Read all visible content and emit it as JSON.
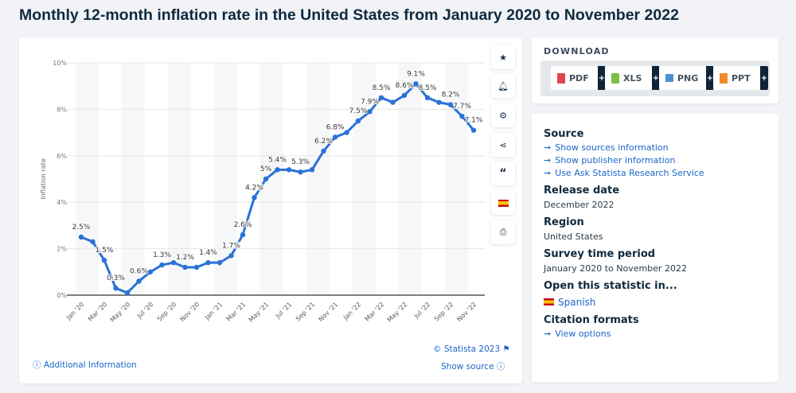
{
  "title": "Monthly 12-month inflation rate in the United States from January 2020 to November 2022",
  "chart_data": {
    "type": "line",
    "title": "",
    "xlabel": "",
    "ylabel": "Inflation rate",
    "ylim": [
      0,
      10
    ],
    "yticks": [
      "0%",
      "2%",
      "4%",
      "6%",
      "8%",
      "10%"
    ],
    "grid": true,
    "color": "#2a72d6",
    "x": [
      "Jan '20",
      "Feb '20",
      "Mar '20",
      "Apr '20",
      "May '20",
      "Jun '20",
      "Jul '20",
      "Aug '20",
      "Sep '20",
      "Oct '20",
      "Nov '20",
      "Dec '20",
      "Jan '21",
      "Feb '21",
      "Mar '21",
      "Apr '21",
      "May '21",
      "Jun '21",
      "Jul '21",
      "Aug '21",
      "Sep '21",
      "Oct '21",
      "Nov '21",
      "Dec '21",
      "Jan '22",
      "Feb '22",
      "Mar '22",
      "Apr '22",
      "May '22",
      "Jun '22",
      "Jul '22",
      "Aug '22",
      "Sep '22",
      "Oct '22",
      "Nov '22"
    ],
    "values": [
      2.5,
      2.3,
      1.5,
      0.3,
      0.1,
      0.6,
      1.0,
      1.3,
      1.4,
      1.2,
      1.2,
      1.4,
      1.4,
      1.7,
      2.6,
      4.2,
      5.0,
      5.4,
      5.4,
      5.3,
      5.4,
      6.2,
      6.8,
      7.0,
      7.5,
      7.9,
      8.5,
      8.3,
      8.6,
      9.1,
      8.5,
      8.3,
      8.2,
      7.7,
      7.1
    ],
    "data_labels": [
      "2.5%",
      null,
      "1.5%",
      "0.3%",
      null,
      "0.6%",
      null,
      "1.3%",
      null,
      "1.2%",
      null,
      "1.4%",
      null,
      "1.7%",
      "2.6%",
      "4.2%",
      "5%",
      "5.4%",
      null,
      "5.3%",
      null,
      "6.2%",
      "6.8%",
      null,
      "7.5%",
      "7.9%",
      "8.5%",
      null,
      "8.6%",
      "9.1%",
      "8.5%",
      null,
      "8.2%",
      "7.7%",
      "7.1%"
    ]
  },
  "chart_footer": {
    "copyright": "© Statista 2023",
    "additional_info": "Additional Information",
    "show_source": "Show source"
  },
  "tools": [
    "star-icon",
    "bell-icon",
    "gear-icon",
    "share-icon",
    "quote-icon",
    "spanish-flag-icon",
    "print-icon"
  ],
  "download": {
    "title": "DOWNLOAD",
    "buttons": [
      "PDF",
      "XLS",
      "PNG",
      "PPT"
    ],
    "plus": "+"
  },
  "info": {
    "source_title": "Source",
    "source_links": [
      "Show sources information",
      "Show publisher information",
      "Use Ask Statista Research Service"
    ],
    "release_title": "Release date",
    "release": "December 2022",
    "region_title": "Region",
    "region": "United States",
    "period_title": "Survey time period",
    "period": "January 2020 to November 2022",
    "open_title": "Open this statistic in...",
    "open_lang": "Spanish",
    "citation_title": "Citation formats",
    "citation_link": "View options"
  }
}
